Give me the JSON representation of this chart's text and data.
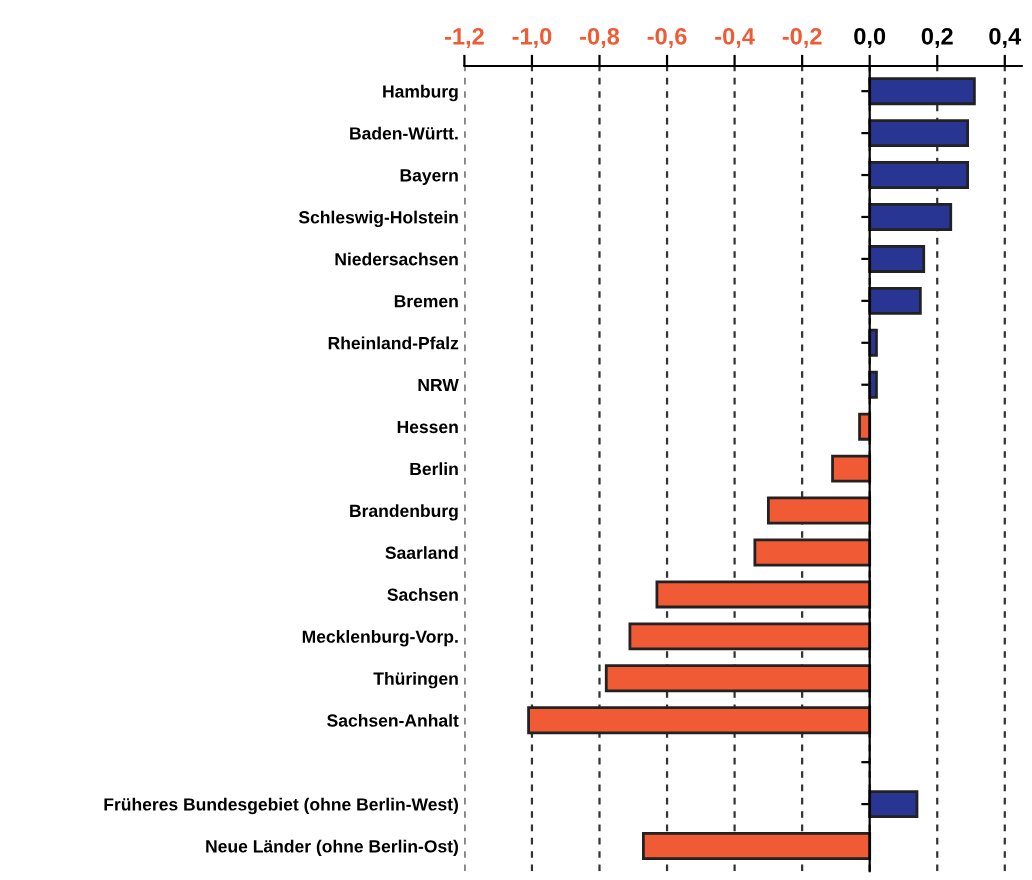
{
  "chart_data": {
    "type": "bar",
    "orientation": "horizontal",
    "categories": [
      "Hamburg",
      "Baden-Württ.",
      "Bayern",
      "Schleswig-Holstein",
      "Niedersachsen",
      "Bremen",
      "Rheinland-Pfalz",
      "NRW",
      "Hessen",
      "Berlin",
      "Brandenburg",
      "Saarland",
      "Sachsen",
      "Mecklenburg-Vorp.",
      "Thüringen",
      "Sachsen-Anhalt",
      null,
      "Früheres Bundesgebiet (ohne Berlin-West)",
      "Neue Länder (ohne Berlin-Ost)"
    ],
    "values": [
      0.31,
      0.29,
      0.29,
      0.24,
      0.16,
      0.15,
      0.02,
      0.02,
      -0.03,
      -0.11,
      -0.3,
      -0.34,
      -0.63,
      -0.71,
      -0.78,
      -1.01,
      null,
      0.14,
      -0.67
    ],
    "colors": [
      "#283593",
      "#283593",
      "#283593",
      "#283593",
      "#283593",
      "#283593",
      "#283593",
      "#283593",
      "#f05a35",
      "#f05a35",
      "#f05a35",
      "#f05a35",
      "#f05a35",
      "#f05a35",
      "#f05a35",
      "#f05a35",
      "#f05a35",
      "#283593",
      "#f05a35"
    ],
    "xlim": [
      -1.2,
      0.45
    ],
    "xticks": [
      {
        "value": -1.2,
        "label": "-1,2"
      },
      {
        "value": -1.0,
        "label": "-1,0"
      },
      {
        "value": -0.8,
        "label": "-0,8"
      },
      {
        "value": -0.6,
        "label": "-0,6"
      },
      {
        "value": -0.4,
        "label": "-0,4"
      },
      {
        "value": -0.2,
        "label": "-0,2"
      },
      {
        "value": 0.0,
        "label": "0,0"
      },
      {
        "value": 0.2,
        "label": "0,2"
      },
      {
        "value": 0.4,
        "label": "0,4"
      }
    ],
    "grid": "x"
  }
}
